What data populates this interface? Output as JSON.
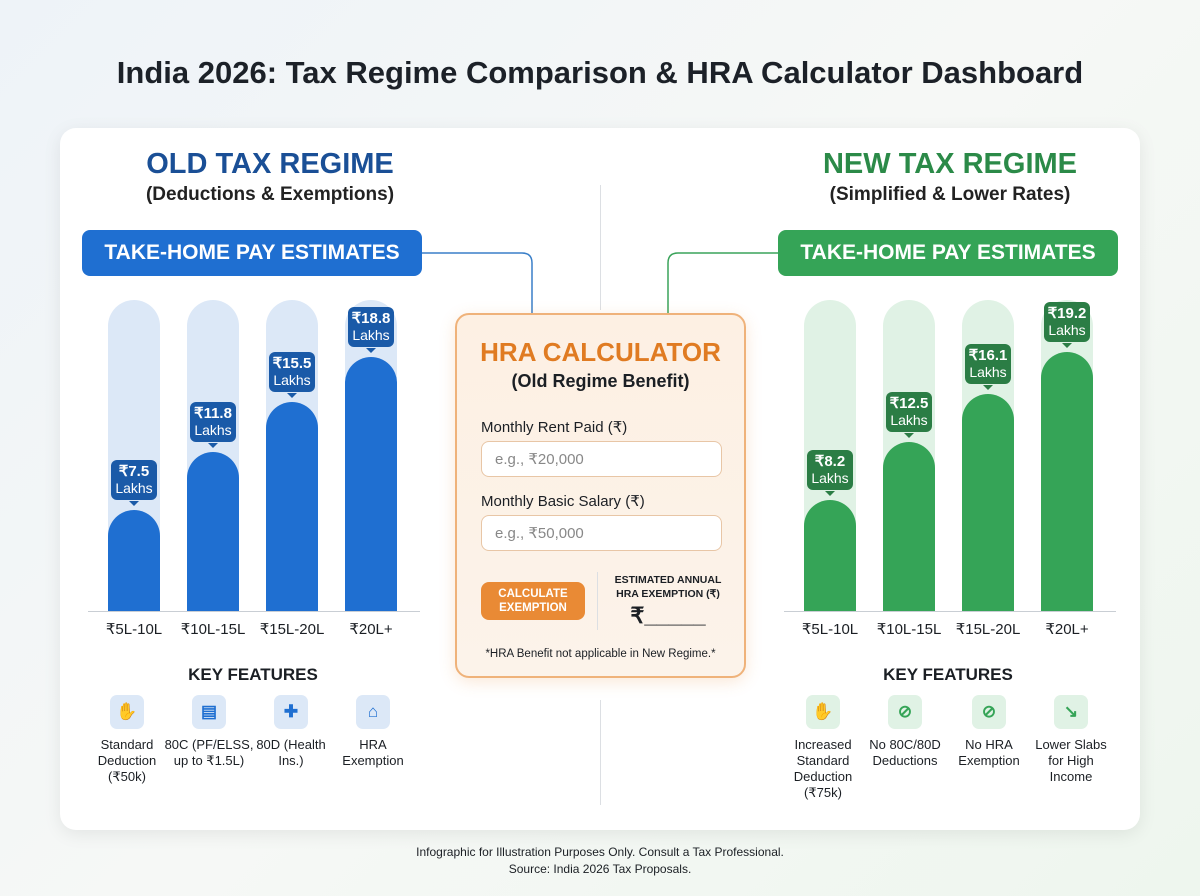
{
  "title": "India 2026: Tax Regime Comparison & HRA Calculator Dashboard",
  "old_regime": {
    "title": "OLD TAX REGIME",
    "subtitle": "(Deductions & Exemptions)",
    "banner": "TAKE-HOME PAY ESTIMATES",
    "key_features_title": "KEY FEATURES",
    "features": [
      {
        "icon": "hand-coin-icon",
        "label": "Standard Deduction (₹50k)"
      },
      {
        "icon": "document-icon",
        "label": "80C (PF/ELSS, up to ₹1.5L)"
      },
      {
        "icon": "shield-plus-icon",
        "label": "80D (Health Ins.)"
      },
      {
        "icon": "house-bed-icon",
        "label": "HRA Exemption"
      }
    ]
  },
  "new_regime": {
    "title": "NEW TAX REGIME",
    "subtitle": "(Simplified & Lower Rates)",
    "banner": "TAKE-HOME PAY ESTIMATES",
    "key_features_title": "KEY FEATURES",
    "features": [
      {
        "icon": "hand-coin-icon",
        "label": "Increased Standard Deduction (₹75k)"
      },
      {
        "icon": "prohibited-icon",
        "label": "No 80C/80D Deductions"
      },
      {
        "icon": "prohibited-icon",
        "label": "No HRA Exemption"
      },
      {
        "icon": "trend-down-icon",
        "label": "Lower Slabs for High Income"
      }
    ]
  },
  "hra": {
    "title": "HRA CALCULATOR",
    "subtitle": "(Old Regime Benefit)",
    "rent_label": "Monthly Rent Paid (₹)",
    "rent_placeholder": "e.g., ₹20,000",
    "salary_label": "Monthly Basic Salary (₹)",
    "salary_placeholder": "e.g., ₹50,000",
    "button": "CALCULATE EXEMPTION",
    "result_label": "ESTIMATED ANNUAL HRA EXEMPTION (₹)",
    "result_value": "₹_____",
    "note": "*HRA Benefit not applicable in New Regime.*"
  },
  "footer": {
    "line1": "Infographic for Illustration Purposes Only. Consult a Tax Professional.",
    "line2": "Source: India 2026 Tax Proposals."
  },
  "colors": {
    "old": "#1f6fd1",
    "old_dark": "#1a5aa8",
    "old_light": "#dce8f7",
    "new": "#35a457",
    "new_dark": "#2b7d45",
    "new_light": "#e0f2e5",
    "hra": "#e07b22"
  },
  "chart_data": [
    {
      "type": "bar",
      "title": "TAKE-HOME PAY ESTIMATES",
      "categories": [
        "₹5L-10L",
        "₹10L-15L",
        "₹15L-20L",
        "₹20L+"
      ],
      "values": [
        7.5,
        11.8,
        15.5,
        18.8
      ],
      "value_labels": [
        "₹7.5",
        "₹11.8",
        "₹15.5",
        "₹18.8"
      ],
      "unit": "Lakhs",
      "color": "#1f6fd1"
    },
    {
      "type": "bar",
      "title": "TAKE-HOME PAY ESTIMATES",
      "categories": [
        "₹5L-10L",
        "₹10L-15L",
        "₹15L-20L",
        "₹20L+"
      ],
      "values": [
        8.2,
        12.5,
        16.1,
        19.2
      ],
      "value_labels": [
        "₹8.2",
        "₹12.5",
        "₹16.1",
        "₹19.2"
      ],
      "unit": "Lakhs",
      "color": "#35a457"
    }
  ]
}
